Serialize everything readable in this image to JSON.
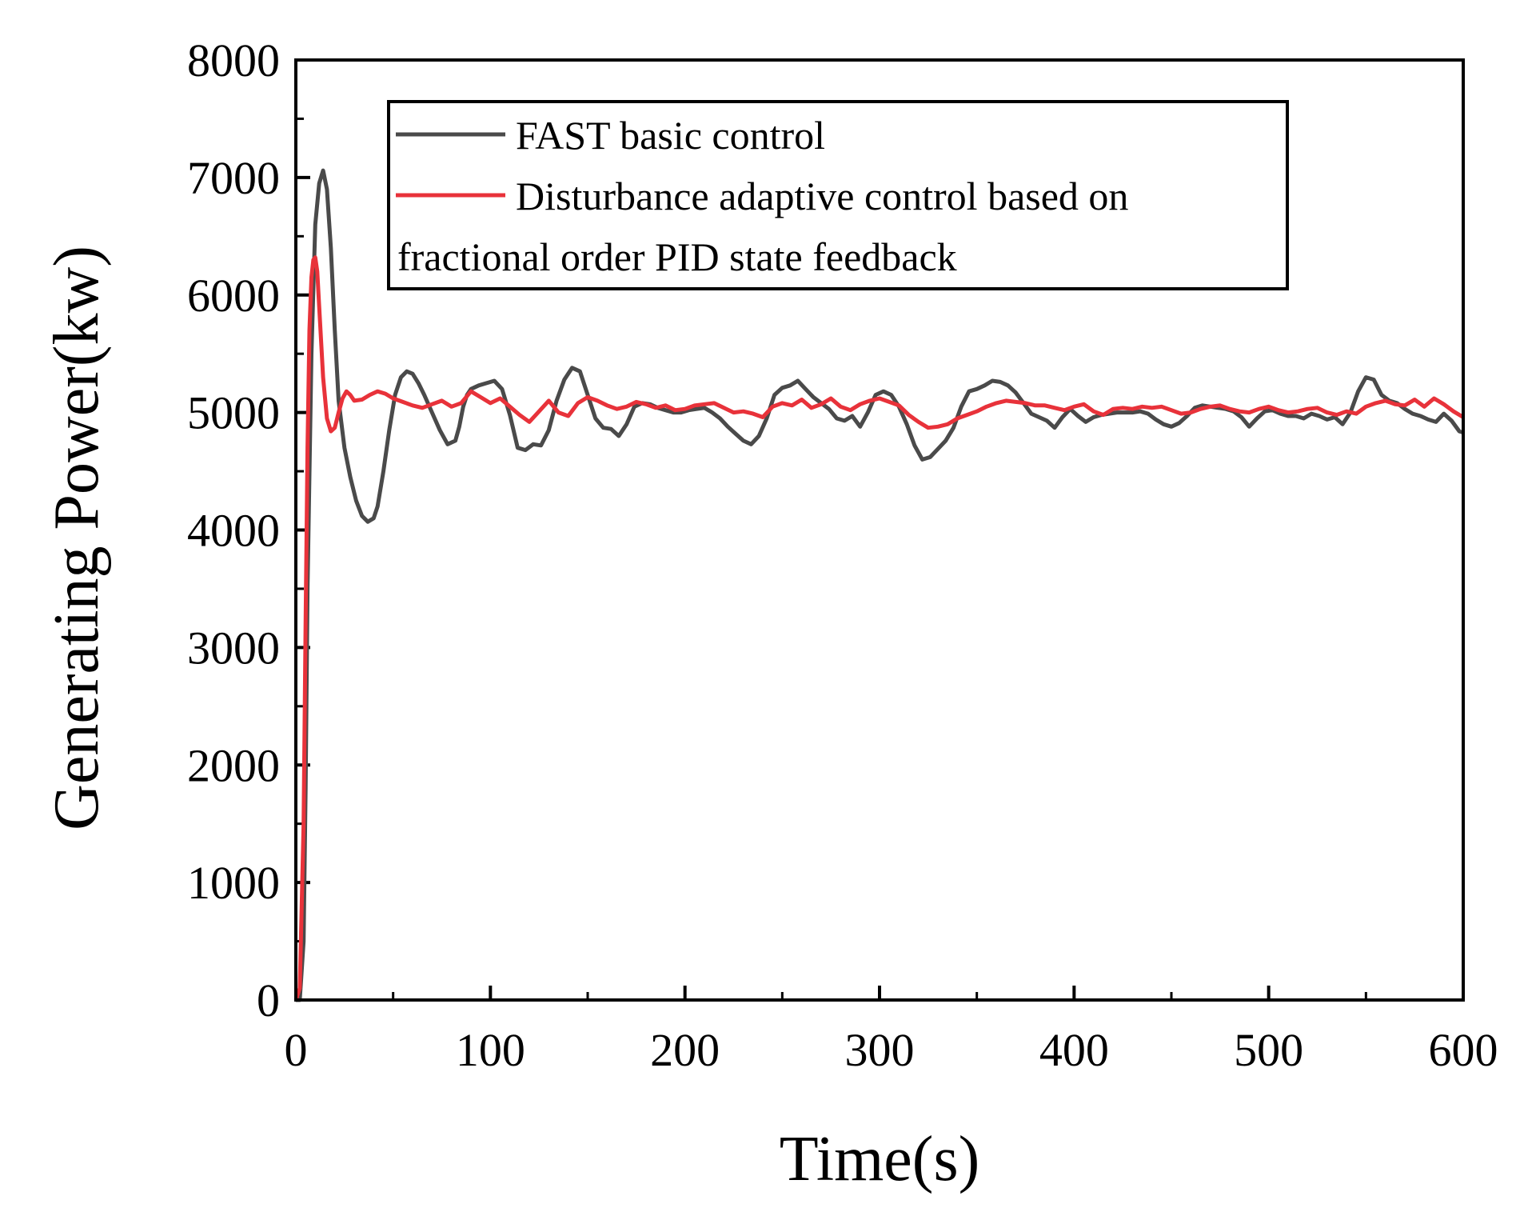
{
  "chart_data": {
    "type": "line",
    "title": "",
    "xlabel": "Time(s)",
    "ylabel": "Generating Power(kw)",
    "xlim": [
      0,
      600
    ],
    "ylim": [
      0,
      8000
    ],
    "xticks": [
      0,
      100,
      200,
      300,
      400,
      500,
      600
    ],
    "yticks": [
      0,
      1000,
      2000,
      3000,
      4000,
      5000,
      6000,
      7000,
      8000
    ],
    "legend_position": "top",
    "grid": false,
    "series": [
      {
        "name": "FAST basic control",
        "color": "#4a4a4a",
        "x": [
          0,
          2,
          4,
          5,
          6,
          8,
          10,
          12,
          14,
          16,
          18,
          20,
          22,
          25,
          28,
          31,
          34,
          37,
          40,
          42,
          45,
          48,
          51,
          54,
          57,
          60,
          63,
          66,
          70,
          74,
          78,
          82,
          84,
          86,
          88,
          90,
          94,
          98,
          102,
          106,
          110,
          114,
          118,
          122,
          126,
          130,
          134,
          138,
          142,
          146,
          150,
          154,
          158,
          162,
          166,
          170,
          174,
          178,
          182,
          186,
          190,
          194,
          198,
          202,
          206,
          210,
          214,
          218,
          222,
          226,
          230,
          234,
          238,
          242,
          246,
          250,
          254,
          258,
          262,
          266,
          270,
          274,
          278,
          282,
          286,
          290,
          294,
          298,
          302,
          306,
          310,
          314,
          318,
          322,
          326,
          330,
          334,
          338,
          342,
          346,
          350,
          354,
          358,
          362,
          366,
          370,
          374,
          378,
          382,
          386,
          390,
          394,
          398,
          402,
          406,
          410,
          414,
          418,
          422,
          426,
          430,
          434,
          438,
          442,
          446,
          450,
          454,
          458,
          462,
          466,
          470,
          474,
          478,
          482,
          486,
          490,
          494,
          498,
          502,
          506,
          510,
          514,
          518,
          522,
          526,
          530,
          534,
          538,
          542,
          546,
          550,
          554,
          558,
          562,
          566,
          570,
          574,
          578,
          582,
          586,
          590,
          594,
          598,
          600
        ],
        "y": [
          0,
          0,
          500,
          1800,
          3500,
          5500,
          6600,
          6950,
          7060,
          6900,
          6400,
          5700,
          5100,
          4700,
          4450,
          4250,
          4120,
          4070,
          4100,
          4200,
          4500,
          4850,
          5150,
          5300,
          5350,
          5330,
          5250,
          5150,
          5000,
          4850,
          4730,
          4760,
          4880,
          5050,
          5150,
          5200,
          5230,
          5250,
          5270,
          5200,
          4980,
          4700,
          4680,
          4730,
          4720,
          4850,
          5100,
          5280,
          5380,
          5350,
          5150,
          4950,
          4870,
          4860,
          4800,
          4900,
          5050,
          5080,
          5070,
          5040,
          5020,
          5000,
          5000,
          5020,
          5030,
          5040,
          5000,
          4950,
          4880,
          4820,
          4760,
          4730,
          4800,
          4950,
          5150,
          5210,
          5230,
          5270,
          5200,
          5130,
          5080,
          5030,
          4950,
          4930,
          4970,
          4880,
          5000,
          5150,
          5180,
          5150,
          5050,
          4900,
          4720,
          4600,
          4620,
          4690,
          4760,
          4870,
          5050,
          5180,
          5200,
          5230,
          5270,
          5260,
          5230,
          5170,
          5080,
          4990,
          4960,
          4930,
          4870,
          4960,
          5030,
          4970,
          4920,
          4960,
          4980,
          4990,
          5000,
          5000,
          5000,
          5010,
          4990,
          4940,
          4900,
          4880,
          4910,
          4970,
          5040,
          5060,
          5050,
          5040,
          5030,
          5010,
          4960,
          4880,
          4950,
          5010,
          5020,
          4990,
          4970,
          4970,
          4950,
          4990,
          4970,
          4940,
          4960,
          4900,
          5000,
          5180,
          5300,
          5280,
          5150,
          5100,
          5080,
          5030,
          4990,
          4970,
          4940,
          4920,
          4990,
          4930,
          4840,
          4830
        ]
      },
      {
        "name": "Disturbance adaptive  control based on fractional order PID state feedback",
        "legend_lines": [
          "Disturbance adaptive  control based on",
          "fractional order PID state feedback"
        ],
        "color": "#e8323a",
        "x": [
          0,
          2,
          4,
          5,
          6,
          7,
          8,
          9,
          10,
          11,
          12,
          14,
          16,
          18,
          20,
          22,
          24,
          26,
          28,
          30,
          34,
          38,
          42,
          46,
          50,
          55,
          60,
          65,
          70,
          75,
          80,
          85,
          90,
          95,
          100,
          105,
          110,
          115,
          120,
          125,
          130,
          135,
          140,
          145,
          150,
          155,
          160,
          165,
          170,
          175,
          180,
          185,
          190,
          195,
          200,
          205,
          210,
          215,
          220,
          225,
          230,
          235,
          240,
          245,
          250,
          255,
          260,
          265,
          270,
          275,
          280,
          285,
          290,
          295,
          300,
          305,
          310,
          315,
          320,
          325,
          330,
          335,
          340,
          345,
          350,
          355,
          360,
          365,
          370,
          375,
          380,
          385,
          390,
          395,
          400,
          405,
          410,
          415,
          420,
          425,
          430,
          435,
          440,
          445,
          450,
          455,
          460,
          465,
          470,
          475,
          480,
          485,
          490,
          495,
          500,
          505,
          510,
          515,
          520,
          525,
          530,
          535,
          540,
          545,
          550,
          555,
          560,
          565,
          570,
          575,
          580,
          585,
          590,
          595,
          600
        ],
        "y": [
          0,
          100,
          1500,
          3200,
          4700,
          5700,
          6150,
          6300,
          6320,
          6200,
          5900,
          5300,
          4950,
          4840,
          4870,
          5000,
          5120,
          5180,
          5150,
          5100,
          5110,
          5150,
          5180,
          5160,
          5120,
          5090,
          5060,
          5040,
          5070,
          5100,
          5050,
          5080,
          5180,
          5130,
          5080,
          5120,
          5050,
          4980,
          4920,
          5010,
          5100,
          5000,
          4970,
          5080,
          5130,
          5100,
          5060,
          5030,
          5050,
          5090,
          5070,
          5040,
          5060,
          5020,
          5030,
          5060,
          5070,
          5080,
          5040,
          5000,
          5010,
          4990,
          4960,
          5050,
          5080,
          5060,
          5110,
          5040,
          5070,
          5120,
          5050,
          5020,
          5070,
          5100,
          5120,
          5090,
          5060,
          4980,
          4920,
          4870,
          4880,
          4900,
          4950,
          4980,
          5010,
          5050,
          5080,
          5100,
          5090,
          5080,
          5060,
          5060,
          5040,
          5020,
          5050,
          5070,
          5010,
          4980,
          5030,
          5040,
          5030,
          5050,
          5040,
          5050,
          5020,
          4990,
          5000,
          5030,
          5050,
          5060,
          5030,
          5010,
          5000,
          5030,
          5050,
          5020,
          5000,
          5010,
          5030,
          5040,
          5000,
          4980,
          5010,
          4990,
          5050,
          5080,
          5100,
          5070,
          5060,
          5110,
          5050,
          5120,
          5070,
          5010,
          4960
        ]
      }
    ]
  }
}
